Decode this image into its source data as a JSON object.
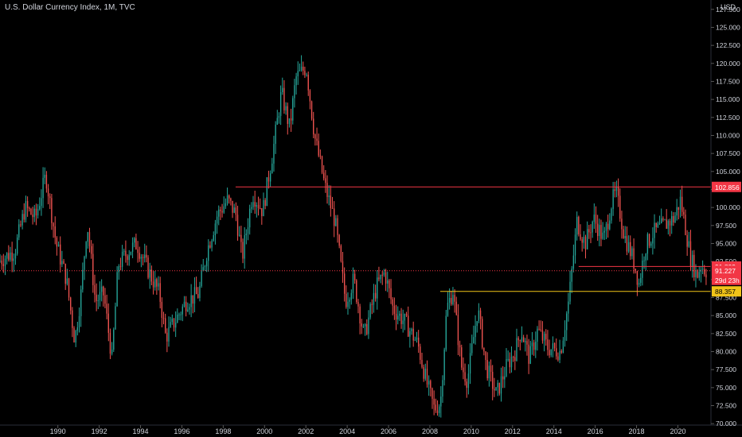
{
  "header": {
    "title": "U.S. Dollar Currency Index, 1M, TVC",
    "currency": "USD"
  },
  "colors": {
    "background": "#000000",
    "up": "#26a69a",
    "down": "#ef5350",
    "axis_text": "#d1d4dc",
    "resistance": "#f23645",
    "support": "#f0c419"
  },
  "chart_data": {
    "type": "candlestick",
    "title": "U.S. Dollar Currency Index, 1M, TVC",
    "ylabel": "USD",
    "ylim": [
      69.8,
      128.8
    ],
    "xlim": [
      1987.2,
      2021.6
    ],
    "grid": false,
    "x_ticks": [
      "1990",
      "1992",
      "1994",
      "1996",
      "1998",
      "2000",
      "2002",
      "2004",
      "2006",
      "2008",
      "2010",
      "2012",
      "2014",
      "2016",
      "2018",
      "2020"
    ],
    "y_ticks": [
      "127.500",
      "125.000",
      "122.500",
      "120.000",
      "117.500",
      "115.000",
      "112.500",
      "110.000",
      "107.500",
      "105.000",
      "102.500",
      "100.000",
      "97.500",
      "95.000",
      "92.500",
      "90.000",
      "87.500",
      "85.000",
      "82.500",
      "80.000",
      "77.500",
      "75.000",
      "72.500",
      "70.000"
    ],
    "series_path": [
      [
        1987.2,
        92.5
      ],
      [
        1988.0,
        94.0
      ],
      [
        1988.5,
        100.0
      ],
      [
        1989.0,
        98.5
      ],
      [
        1989.5,
        104.5
      ],
      [
        1990.0,
        95.0
      ],
      [
        1990.5,
        90.0
      ],
      [
        1990.9,
        81.5
      ],
      [
        1991.2,
        88.0
      ],
      [
        1991.5,
        98.0
      ],
      [
        1991.9,
        87.0
      ],
      [
        1992.3,
        88.0
      ],
      [
        1992.7,
        79.0
      ],
      [
        1993.0,
        92.0
      ],
      [
        1993.5,
        94.0
      ],
      [
        1993.9,
        95.0
      ],
      [
        1994.5,
        91.0
      ],
      [
        1995.0,
        88.0
      ],
      [
        1995.3,
        82.0
      ],
      [
        1995.7,
        84.0
      ],
      [
        1996.3,
        87.0
      ],
      [
        1996.9,
        88.0
      ],
      [
        1997.3,
        94.0
      ],
      [
        1997.8,
        99.0
      ],
      [
        1998.3,
        101.0
      ],
      [
        1998.7,
        99.0
      ],
      [
        1999.0,
        93.0
      ],
      [
        1999.5,
        102.0
      ],
      [
        2000.0,
        99.5
      ],
      [
        2000.5,
        108.0
      ],
      [
        2000.9,
        116.0
      ],
      [
        2001.3,
        111.0
      ],
      [
        2001.6,
        118.0
      ],
      [
        2002.1,
        119.5
      ],
      [
        2002.5,
        110.0
      ],
      [
        2003.0,
        103.0
      ],
      [
        2003.5,
        98.0
      ],
      [
        2004.0,
        87.0
      ],
      [
        2004.4,
        90.0
      ],
      [
        2004.9,
        82.0
      ],
      [
        2005.5,
        89.0
      ],
      [
        2005.9,
        91.0
      ],
      [
        2006.3,
        86.0
      ],
      [
        2006.9,
        84.0
      ],
      [
        2007.5,
        81.0
      ],
      [
        2007.9,
        76.0
      ],
      [
        2008.3,
        72.0
      ],
      [
        2008.6,
        73.0
      ],
      [
        2008.9,
        86.0
      ],
      [
        2009.2,
        88.5
      ],
      [
        2009.6,
        78.0
      ],
      [
        2009.9,
        76.0
      ],
      [
        2010.4,
        86.0
      ],
      [
        2010.8,
        78.0
      ],
      [
        2011.3,
        74.0
      ],
      [
        2011.8,
        78.0
      ],
      [
        2012.2,
        80.0
      ],
      [
        2012.5,
        83.0
      ],
      [
        2012.9,
        79.0
      ],
      [
        2013.3,
        83.0
      ],
      [
        2013.8,
        80.5
      ],
      [
        2014.4,
        80.0
      ],
      [
        2014.8,
        87.0
      ],
      [
        2015.2,
        98.0
      ],
      [
        2015.6,
        95.0
      ],
      [
        2016.0,
        98.5
      ],
      [
        2016.5,
        95.5
      ],
      [
        2016.9,
        101.0
      ],
      [
        2017.1,
        102.0
      ],
      [
        2017.5,
        96.0
      ],
      [
        2017.9,
        93.0
      ],
      [
        2018.2,
        89.5
      ],
      [
        2018.5,
        94.5
      ],
      [
        2018.9,
        96.5
      ],
      [
        2019.4,
        97.5
      ],
      [
        2019.9,
        98.5
      ],
      [
        2020.2,
        101.0
      ],
      [
        2020.4,
        98.0
      ],
      [
        2020.7,
        93.0
      ],
      [
        2021.0,
        90.5
      ],
      [
        2021.2,
        92.0
      ],
      [
        2021.4,
        91.3
      ]
    ],
    "horizontal_levels": [
      {
        "value": 102.856,
        "label": "102.856",
        "color": "#f23645",
        "from": 1998.6
      },
      {
        "value": 91.809,
        "label": "91.809",
        "color": "#f23645",
        "from": 2015.2
      },
      {
        "value": 88.357,
        "label": "88.357",
        "color": "#f0c419",
        "from": 2008.5
      }
    ],
    "current_price": {
      "value": 91.227,
      "label": "91.227",
      "countdown": "29d 23h",
      "color": "#f23645"
    }
  }
}
